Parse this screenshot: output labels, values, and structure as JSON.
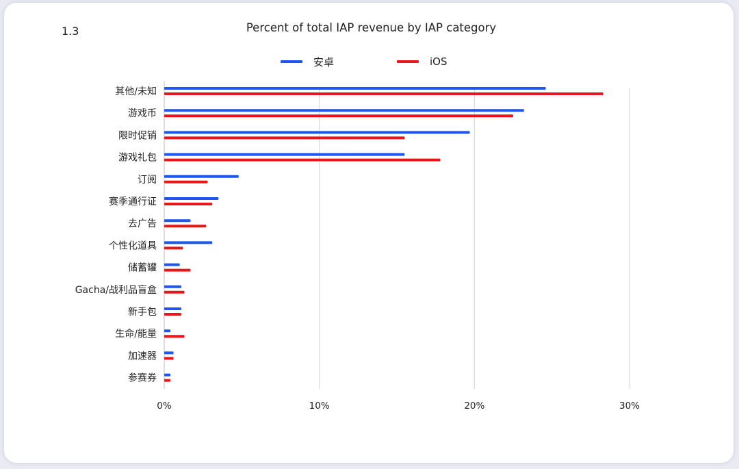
{
  "figure_number": "1.3",
  "colors": {
    "android": "#1f55f0",
    "ios": "#e8161b",
    "grid": "#d4d4d4"
  },
  "chart_data": {
    "type": "bar",
    "orientation": "horizontal",
    "title": "Percent of total IAP revenue by IAP category",
    "xlabel": "",
    "ylabel": "",
    "xlim": [
      0,
      30
    ],
    "x_ticks": [
      "0%",
      "10%",
      "20%",
      "30%"
    ],
    "grid": true,
    "legend_position": "top-center",
    "categories": [
      "其他/未知",
      "游戏币",
      "限时促销",
      "游戏礼包",
      "订阅",
      "赛季通行证",
      "去广告",
      "个性化道具",
      "储蓄罐",
      "Gacha/战利品盲盒",
      "新手包",
      "生命/能量",
      "加速器",
      "参赛券"
    ],
    "series": [
      {
        "name": "安卓",
        "color": "#1f55f0",
        "values": [
          24.6,
          23.2,
          19.7,
          15.5,
          4.8,
          3.5,
          1.7,
          3.1,
          1.0,
          1.1,
          1.1,
          0.4,
          0.6,
          0.4
        ]
      },
      {
        "name": "iOS",
        "color": "#e8161b",
        "values": [
          28.3,
          22.5,
          15.5,
          17.8,
          2.8,
          3.1,
          2.7,
          1.2,
          1.7,
          1.3,
          1.1,
          1.3,
          0.6,
          0.4
        ]
      }
    ]
  }
}
